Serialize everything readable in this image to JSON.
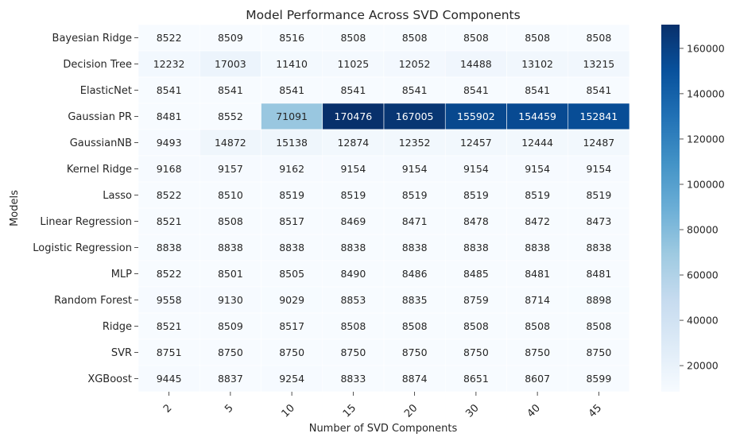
{
  "chart_data": {
    "type": "heatmap",
    "title": "Model Performance Across SVD Components",
    "xlabel": "Number of SVD Components",
    "ylabel": "Models",
    "x_categories": [
      "2",
      "5",
      "10",
      "15",
      "20",
      "30",
      "40",
      "45"
    ],
    "y_categories": [
      "Bayesian Ridge",
      "Decision Tree",
      "ElasticNet",
      "Gaussian PR",
      "GaussianNB",
      "Kernel Ridge",
      "Lasso",
      "Linear Regression",
      "Logistic Regression",
      "MLP",
      "Random Forest",
      "Ridge",
      "SVR",
      "XGBoost"
    ],
    "values": [
      [
        8522,
        8509,
        8516,
        8508,
        8508,
        8508,
        8508,
        8508
      ],
      [
        12232,
        17003,
        11410,
        11025,
        12052,
        14488,
        13102,
        13215
      ],
      [
        8541,
        8541,
        8541,
        8541,
        8541,
        8541,
        8541,
        8541
      ],
      [
        8481,
        8552,
        71091,
        170476,
        167005,
        155902,
        154459,
        152841
      ],
      [
        9493,
        14872,
        15138,
        12874,
        12352,
        12457,
        12444,
        12487
      ],
      [
        9168,
        9157,
        9162,
        9154,
        9154,
        9154,
        9154,
        9154
      ],
      [
        8522,
        8510,
        8519,
        8519,
        8519,
        8519,
        8519,
        8519
      ],
      [
        8521,
        8508,
        8517,
        8469,
        8471,
        8478,
        8472,
        8473
      ],
      [
        8838,
        8838,
        8838,
        8838,
        8838,
        8838,
        8838,
        8838
      ],
      [
        8522,
        8501,
        8505,
        8490,
        8486,
        8485,
        8481,
        8481
      ],
      [
        9558,
        9130,
        9029,
        8853,
        8835,
        8759,
        8714,
        8898
      ],
      [
        8521,
        8509,
        8517,
        8508,
        8508,
        8508,
        8508,
        8508
      ],
      [
        8751,
        8750,
        8750,
        8750,
        8750,
        8750,
        8750,
        8750
      ],
      [
        9445,
        8837,
        9254,
        8833,
        8874,
        8651,
        8607,
        8599
      ]
    ],
    "colormap": "Blues",
    "colorbar": {
      "vmin": 8469,
      "vmax": 170476,
      "ticks": [
        20000,
        40000,
        60000,
        80000,
        100000,
        120000,
        140000,
        160000
      ],
      "tick_labels": [
        "20000",
        "40000",
        "60000",
        "80000",
        "100000",
        "120000",
        "140000",
        "160000"
      ]
    },
    "colors": {
      "low": "#f7fbff",
      "high": "#08306b",
      "label_dark": "#262626",
      "label_light": "#ffffff"
    }
  }
}
